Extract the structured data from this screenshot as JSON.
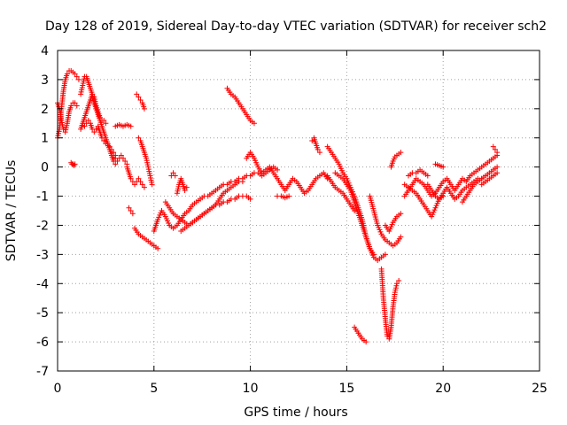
{
  "chart_data": {
    "type": "scatter",
    "title": "Day 128 of 2019, Sidereal Day-to-day VTEC variation (SDTVAR) for receiver sch2",
    "xlabel": "GPS time / hours",
    "ylabel": "SDTVAR / TECUs",
    "xlim": [
      0,
      25
    ],
    "ylim": [
      -7,
      4
    ],
    "xticks": [
      "0",
      "5",
      "10",
      "15",
      "20",
      "25"
    ],
    "yticks": [
      "-7",
      "-6",
      "-5",
      "-4",
      "-3",
      "-2",
      "-1",
      "0",
      "1",
      "2",
      "3",
      "4"
    ],
    "grid": true,
    "marker": "+",
    "color": "#ff0000",
    "series": [
      {
        "x": [
          0.0,
          0.1,
          0.2,
          0.3,
          0.4,
          0.5,
          0.6,
          0.7,
          0.8,
          0.9,
          1.0,
          1.1
        ],
        "y": [
          1.0,
          1.3,
          2.0,
          2.6,
          3.0,
          3.2,
          3.3,
          3.3,
          3.25,
          3.2,
          3.1,
          3.0
        ]
      },
      {
        "x": [
          0.0,
          0.1,
          0.2,
          0.3,
          0.4,
          0.5,
          0.6,
          0.7,
          0.8,
          0.9,
          1.0
        ],
        "y": [
          2.2,
          2.0,
          1.6,
          1.3,
          1.2,
          1.5,
          1.9,
          2.1,
          2.2,
          2.2,
          2.1
        ]
      },
      {
        "x": [
          0.7,
          0.75,
          0.8,
          0.85,
          0.9
        ],
        "y": [
          0.15,
          0.1,
          0.1,
          0.05,
          0.1
        ]
      },
      {
        "x": [
          1.2,
          1.3,
          1.4,
          1.5,
          1.6,
          1.7,
          1.8,
          1.9,
          2.0,
          2.1,
          2.2,
          2.3,
          2.4,
          2.5,
          2.6,
          2.7,
          2.8,
          2.9,
          3.0
        ],
        "y": [
          2.5,
          2.8,
          3.1,
          3.1,
          2.9,
          2.7,
          2.5,
          2.2,
          2.0,
          1.8,
          1.6,
          1.4,
          1.2,
          1.0,
          0.8,
          0.6,
          0.4,
          0.2,
          0.1
        ]
      },
      {
        "x": [
          1.2,
          1.3,
          1.4,
          1.5,
          1.6,
          1.7,
          1.8,
          1.9,
          2.0,
          2.1,
          2.2,
          2.3,
          2.4,
          2.5
        ],
        "y": [
          1.3,
          1.5,
          1.7,
          1.9,
          2.1,
          2.3,
          2.5,
          2.4,
          2.1,
          1.9,
          1.7,
          1.6,
          1.6,
          1.5
        ]
      },
      {
        "x": [
          1.4,
          1.5,
          1.6,
          1.7,
          1.8,
          1.9,
          2.0,
          2.1,
          2.2,
          2.3,
          2.4,
          2.5,
          2.6,
          2.7,
          2.8,
          2.9,
          3.0
        ],
        "y": [
          1.4,
          1.5,
          1.6,
          1.5,
          1.3,
          1.2,
          1.3,
          1.4,
          1.2,
          1.0,
          0.9,
          0.8,
          0.8,
          0.7,
          0.6,
          0.5,
          0.4
        ]
      },
      {
        "x": [
          3.0,
          3.2,
          3.4,
          3.6,
          3.8
        ],
        "y": [
          1.4,
          1.45,
          1.4,
          1.45,
          1.4
        ]
      },
      {
        "x": [
          2.9,
          3.0,
          3.1,
          3.2,
          3.3,
          3.4,
          3.5,
          3.6
        ],
        "y": [
          0.4,
          0.3,
          0.2,
          0.3,
          0.4,
          0.3,
          0.2,
          0.1
        ]
      },
      {
        "x": [
          3.6,
          3.7,
          3.8,
          3.9,
          4.0,
          4.1,
          4.2,
          4.3,
          4.4,
          4.5
        ],
        "y": [
          0.0,
          -0.2,
          -0.4,
          -0.5,
          -0.6,
          -0.5,
          -0.4,
          -0.5,
          -0.6,
          -0.7
        ]
      },
      {
        "x": [
          4.1,
          4.2,
          4.3,
          4.4,
          4.5
        ],
        "y": [
          2.5,
          2.4,
          2.3,
          2.2,
          2.0
        ]
      },
      {
        "x": [
          4.2,
          4.3,
          4.4,
          4.5,
          4.6,
          4.7,
          4.8,
          4.9
        ],
        "y": [
          1.0,
          0.9,
          0.7,
          0.5,
          0.3,
          0.0,
          -0.3,
          -0.6
        ]
      },
      {
        "x": [
          3.7,
          3.8,
          3.9
        ],
        "y": [
          -1.4,
          -1.5,
          -1.6
        ]
      },
      {
        "x": [
          4.0,
          4.2,
          4.4,
          4.6,
          4.8,
          5.0,
          5.2
        ],
        "y": [
          -2.1,
          -2.3,
          -2.4,
          -2.5,
          -2.6,
          -2.7,
          -2.8
        ]
      },
      {
        "x": [
          5.0,
          5.2,
          5.4,
          5.6,
          5.8,
          6.0,
          6.2,
          6.4,
          6.6,
          6.8,
          7.0,
          7.2,
          7.4,
          7.6,
          7.8,
          8.0,
          8.2,
          8.4,
          8.6,
          8.8,
          9.0,
          9.2,
          9.4,
          9.6,
          9.8,
          10.0,
          10.2,
          10.4,
          10.6,
          10.8,
          11.0,
          11.2,
          11.4
        ],
        "y": [
          -2.2,
          -1.8,
          -1.5,
          -1.7,
          -2.0,
          -2.1,
          -2.0,
          -1.8,
          -1.6,
          -1.5,
          -1.3,
          -1.2,
          -1.1,
          -1.0,
          -1.0,
          -0.9,
          -0.8,
          -0.7,
          -0.6,
          -0.6,
          -0.5,
          -0.5,
          -0.4,
          -0.4,
          -0.3,
          -0.3,
          -0.2,
          -0.2,
          -0.3,
          -0.2,
          -0.1,
          0.0,
          -0.1
        ]
      },
      {
        "x": [
          5.6,
          5.8,
          6.0,
          6.2,
          6.4,
          6.6,
          6.8,
          7.0,
          7.2,
          7.4,
          7.6,
          7.8,
          8.0,
          8.2,
          8.4,
          8.6,
          8.8,
          9.0,
          9.2,
          9.4,
          9.6,
          9.8,
          10.0
        ],
        "y": [
          -1.2,
          -1.4,
          -1.6,
          -1.7,
          -1.8,
          -1.9,
          -2.0,
          -1.9,
          -1.8,
          -1.7,
          -1.6,
          -1.5,
          -1.4,
          -1.3,
          -1.3,
          -1.2,
          -1.2,
          -1.1,
          -1.1,
          -1.0,
          -1.0,
          -1.0,
          -1.1
        ]
      },
      {
        "x": [
          6.4,
          6.6,
          6.8,
          7.0,
          7.2,
          7.4,
          7.6,
          7.8,
          8.0,
          8.2,
          8.4,
          8.6,
          8.8,
          9.0,
          9.2,
          9.4,
          9.6
        ],
        "y": [
          -2.2,
          -2.1,
          -2.0,
          -1.9,
          -1.8,
          -1.7,
          -1.6,
          -1.5,
          -1.4,
          -1.3,
          -1.1,
          -0.9,
          -0.8,
          -0.7,
          -0.6,
          -0.5,
          -0.5
        ]
      },
      {
        "x": [
          6.2,
          6.3,
          6.4,
          6.5,
          6.6,
          6.7
        ],
        "y": [
          -0.9,
          -0.6,
          -0.4,
          -0.6,
          -0.8,
          -0.7
        ]
      },
      {
        "x": [
          5.9,
          6.0,
          6.1
        ],
        "y": [
          -0.3,
          -0.2,
          -0.3
        ]
      },
      {
        "x": [
          8.8,
          9.0,
          9.2,
          9.4,
          9.6,
          9.8,
          10.0,
          10.2
        ],
        "y": [
          2.7,
          2.5,
          2.4,
          2.2,
          2.0,
          1.8,
          1.6,
          1.5
        ]
      },
      {
        "x": [
          9.8,
          10.0,
          10.2,
          10.4,
          10.6,
          10.8,
          11.0,
          11.2,
          11.4,
          11.6,
          11.8,
          12.0,
          12.2,
          12.4,
          12.6,
          12.8,
          13.0,
          13.2,
          13.4,
          13.6,
          13.8,
          14.0
        ],
        "y": [
          0.3,
          0.5,
          0.3,
          0.0,
          -0.2,
          -0.1,
          0.0,
          -0.2,
          -0.4,
          -0.6,
          -0.8,
          -0.6,
          -0.4,
          -0.5,
          -0.7,
          -0.9,
          -0.8,
          -0.6,
          -0.4,
          -0.3,
          -0.2,
          -0.4
        ]
      },
      {
        "x": [
          11.4,
          11.6,
          11.8,
          12.0
        ],
        "y": [
          -1.0,
          -1.0,
          -1.05,
          -1.0
        ]
      },
      {
        "x": [
          13.2,
          13.3,
          13.4,
          13.5,
          13.6
        ],
        "y": [
          0.9,
          1.0,
          0.8,
          0.6,
          0.5
        ]
      },
      {
        "x": [
          14.0,
          14.2,
          14.4,
          14.6,
          14.8,
          15.0,
          15.2,
          15.4,
          15.6,
          15.8,
          16.0,
          16.2,
          16.4,
          16.6,
          16.8,
          17.0
        ],
        "y": [
          0.7,
          0.5,
          0.3,
          0.1,
          -0.2,
          -0.4,
          -0.7,
          -1.0,
          -1.4,
          -1.8,
          -2.4,
          -2.8,
          -3.1,
          -3.2,
          -3.1,
          -3.0
        ]
      },
      {
        "x": [
          14.4,
          14.6,
          14.8,
          15.0,
          15.2,
          15.4,
          15.6,
          15.8,
          16.0,
          16.2,
          16.4
        ],
        "y": [
          -0.2,
          -0.3,
          -0.4,
          -0.6,
          -0.8,
          -1.2,
          -1.6,
          -2.0,
          -2.4,
          -2.8,
          -3.0
        ]
      },
      {
        "x": [
          14.0,
          14.2,
          14.4,
          14.6,
          14.8,
          15.0,
          15.2,
          15.4
        ],
        "y": [
          -0.3,
          -0.5,
          -0.7,
          -0.8,
          -0.9,
          -1.1,
          -1.3,
          -1.5
        ]
      },
      {
        "x": [
          15.4,
          15.6,
          15.8,
          16.0
        ],
        "y": [
          -5.5,
          -5.7,
          -5.9,
          -6.0
        ]
      },
      {
        "x": [
          16.2,
          16.4,
          16.6,
          16.8,
          17.0,
          17.2,
          17.4,
          17.6,
          17.8
        ],
        "y": [
          -1.0,
          -1.5,
          -2.0,
          -2.3,
          -2.5,
          -2.6,
          -2.7,
          -2.6,
          -2.4
        ]
      },
      {
        "x": [
          16.8,
          16.9,
          17.0,
          17.1,
          17.2,
          17.3,
          17.4,
          17.5,
          17.6,
          17.7
        ],
        "y": [
          -3.5,
          -4.5,
          -5.2,
          -5.8,
          -5.9,
          -5.5,
          -4.8,
          -4.3,
          -4.0,
          -3.9
        ]
      },
      {
        "x": [
          17.0,
          17.2,
          17.4,
          17.6,
          17.8
        ],
        "y": [
          -2.0,
          -2.2,
          -1.9,
          -1.7,
          -1.6
        ]
      },
      {
        "x": [
          17.3,
          17.4,
          17.5,
          17.6,
          17.7,
          17.8
        ],
        "y": [
          0.0,
          0.2,
          0.35,
          0.4,
          0.45,
          0.5
        ]
      },
      {
        "x": [
          18.0,
          18.2,
          18.4,
          18.6,
          18.8,
          19.0,
          19.2,
          19.4,
          19.6,
          19.8,
          20.0,
          20.2,
          20.4,
          20.6,
          20.8,
          21.0,
          21.2,
          21.4,
          21.6,
          21.8,
          22.0,
          22.2,
          22.4,
          22.6,
          22.8
        ],
        "y": [
          -1.0,
          -0.8,
          -0.6,
          -0.4,
          -0.5,
          -0.6,
          -0.8,
          -1.0,
          -0.9,
          -0.7,
          -0.5,
          -0.4,
          -0.6,
          -0.8,
          -0.6,
          -0.4,
          -0.5,
          -0.3,
          -0.2,
          -0.1,
          0.0,
          0.1,
          0.2,
          0.3,
          0.4
        ]
      },
      {
        "x": [
          18.0,
          18.2,
          18.4,
          18.6,
          18.8,
          19.0,
          19.2,
          19.4,
          19.6,
          19.8,
          20.0,
          20.2,
          20.4,
          20.6,
          20.8,
          21.0,
          21.2,
          21.4,
          21.6,
          21.8,
          22.0
        ],
        "y": [
          -0.6,
          -0.7,
          -0.8,
          -0.9,
          -1.1,
          -1.3,
          -1.5,
          -1.7,
          -1.4,
          -1.1,
          -0.9,
          -0.7,
          -0.9,
          -1.1,
          -1.0,
          -0.8,
          -0.7,
          -0.6,
          -0.5,
          -0.4,
          -0.4
        ]
      },
      {
        "x": [
          18.2,
          18.4,
          18.6,
          18.8,
          19.0,
          19.2
        ],
        "y": [
          -0.3,
          -0.2,
          -0.2,
          -0.1,
          -0.2,
          -0.3
        ]
      },
      {
        "x": [
          19.2,
          19.4,
          19.6,
          19.8,
          20.0
        ],
        "y": [
          -0.6,
          -0.8,
          -1.0,
          -1.1,
          -1.0
        ]
      },
      {
        "x": [
          19.6,
          19.8,
          20.0
        ],
        "y": [
          0.1,
          0.05,
          0.0
        ]
      },
      {
        "x": [
          21.0,
          21.2,
          21.4,
          21.6,
          21.8,
          22.0,
          22.2,
          22.4,
          22.6,
          22.8
        ],
        "y": [
          -1.2,
          -1.0,
          -0.8,
          -0.6,
          -0.5,
          -0.4,
          -0.3,
          -0.2,
          -0.1,
          0.0
        ]
      },
      {
        "x": [
          22.0,
          22.2,
          22.4,
          22.6,
          22.8
        ],
        "y": [
          -0.6,
          -0.5,
          -0.4,
          -0.3,
          -0.2
        ]
      },
      {
        "x": [
          22.6,
          22.7,
          22.8
        ],
        "y": [
          0.7,
          0.6,
          0.5
        ]
      }
    ]
  }
}
